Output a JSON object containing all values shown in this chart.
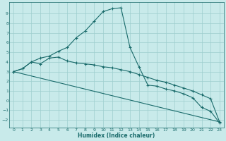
{
  "xlabel": "Humidex (Indice chaleur)",
  "bg_color": "#c8eaea",
  "grid_color": "#9ecece",
  "line_color": "#1a6b6b",
  "xlim": [
    -0.5,
    23.5
  ],
  "ylim": [
    -2.8,
    10.2
  ],
  "xticks": [
    0,
    1,
    2,
    3,
    4,
    5,
    6,
    7,
    8,
    9,
    10,
    11,
    12,
    13,
    14,
    15,
    16,
    17,
    18,
    19,
    20,
    21,
    22,
    23
  ],
  "yticks": [
    -2,
    -1,
    0,
    1,
    2,
    3,
    4,
    5,
    6,
    7,
    8,
    9
  ],
  "curve1_x": [
    0,
    1,
    2,
    3,
    4,
    5,
    6,
    7,
    8,
    9,
    10,
    11,
    12,
    13,
    14,
    15,
    16,
    17,
    18,
    19,
    20,
    21,
    22,
    23
  ],
  "curve1_y": [
    3.0,
    3.3,
    4.0,
    4.4,
    4.6,
    5.1,
    5.5,
    6.5,
    7.2,
    8.2,
    9.2,
    9.5,
    9.6,
    5.5,
    3.5,
    1.6,
    1.5,
    1.2,
    1.0,
    0.7,
    0.3,
    -0.7,
    -1.1,
    -2.3
  ],
  "curve2_x": [
    0,
    1,
    2,
    3,
    4,
    5,
    6,
    7,
    8,
    9,
    10,
    11,
    12,
    13,
    14,
    15,
    16,
    17,
    18,
    19,
    20,
    21,
    22,
    23
  ],
  "curve2_y": [
    3.0,
    3.3,
    4.0,
    3.8,
    4.4,
    4.5,
    4.1,
    3.9,
    3.8,
    3.7,
    3.5,
    3.4,
    3.2,
    3.0,
    2.7,
    2.4,
    2.1,
    1.9,
    1.6,
    1.3,
    1.0,
    0.6,
    0.2,
    -2.2
  ],
  "curve3_x": [
    0,
    23
  ],
  "curve3_y": [
    3.0,
    -2.2
  ],
  "tick_fontsize": 4.5,
  "xlabel_fontsize": 5.5
}
